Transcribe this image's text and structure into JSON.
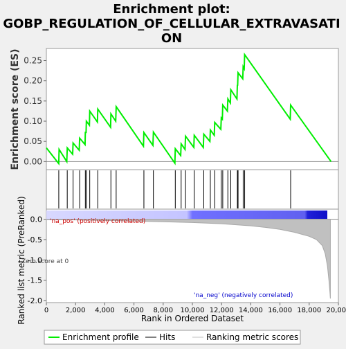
{
  "chart_data": {
    "type": "line",
    "title_line1": "Enrichment plot:",
    "title_line2": "GOBP_REGULATION_OF_CELLULAR_EXTRAVASATI",
    "title_line3": "ON",
    "top_panel": {
      "ylabel": "Enrichment score (ES)",
      "ylim": [
        -0.02,
        0.28
      ],
      "yticks": [
        "0.00",
        "0.05",
        "0.10",
        "0.15",
        "0.20",
        "0.25"
      ],
      "ytick_values": [
        0,
        0.05,
        0.1,
        0.15,
        0.2,
        0.25
      ],
      "series": [
        {
          "name": "Enrichment profile",
          "color": "#00ee00",
          "points": [
            [
              0,
              0.034
            ],
            [
              850,
              -0.005
            ],
            [
              870,
              0.03
            ],
            [
              1400,
              0.0
            ],
            [
              1430,
              0.034
            ],
            [
              1800,
              0.018
            ],
            [
              1830,
              0.046
            ],
            [
              2250,
              0.028
            ],
            [
              2280,
              0.058
            ],
            [
              2650,
              0.042
            ],
            [
              2670,
              0.072
            ],
            [
              2720,
              0.072
            ],
            [
              2740,
              0.1
            ],
            [
              2950,
              0.09
            ],
            [
              2970,
              0.125
            ],
            [
              3500,
              0.098
            ],
            [
              3520,
              0.13
            ],
            [
              4400,
              0.085
            ],
            [
              4420,
              0.118
            ],
            [
              4750,
              0.1
            ],
            [
              4780,
              0.136
            ],
            [
              6650,
              0.038
            ],
            [
              6680,
              0.072
            ],
            [
              7300,
              0.04
            ],
            [
              7330,
              0.073
            ],
            [
              8800,
              -0.004
            ],
            [
              8830,
              0.032
            ],
            [
              9200,
              0.015
            ],
            [
              9230,
              0.044
            ],
            [
              9500,
              0.03
            ],
            [
              9530,
              0.063
            ],
            [
              10100,
              0.035
            ],
            [
              10130,
              0.065
            ],
            [
              10750,
              0.035
            ],
            [
              10780,
              0.068
            ],
            [
              11200,
              0.05
            ],
            [
              11230,
              0.078
            ],
            [
              11500,
              0.065
            ],
            [
              11530,
              0.097
            ],
            [
              11950,
              0.08
            ],
            [
              11980,
              0.108
            ],
            [
              12050,
              0.105
            ],
            [
              12080,
              0.14
            ],
            [
              12400,
              0.125
            ],
            [
              12430,
              0.155
            ],
            [
              12600,
              0.145
            ],
            [
              12630,
              0.178
            ],
            [
              13050,
              0.155
            ],
            [
              13080,
              0.19
            ],
            [
              13100,
              0.188
            ],
            [
              13130,
              0.22
            ],
            [
              13450,
              0.205
            ],
            [
              13480,
              0.235
            ],
            [
              13550,
              0.23
            ],
            [
              13580,
              0.265
            ],
            [
              16700,
              0.105
            ],
            [
              16730,
              0.14
            ],
            [
              19500,
              0.0
            ]
          ]
        }
      ]
    },
    "hits": {
      "name": "Hits",
      "positions": [
        850,
        1430,
        1830,
        2280,
        2670,
        2740,
        2970,
        3520,
        4420,
        4780,
        6680,
        7330,
        8830,
        9230,
        9530,
        10130,
        10780,
        11230,
        11530,
        11980,
        12080,
        12430,
        12630,
        13080,
        13130,
        13480,
        13580,
        16730
      ]
    },
    "bottom_panel": {
      "ylabel": "Ranked list metric (PreRanked)",
      "xlabel": "Rank in Ordered Dataset",
      "ylim": [
        -2.05,
        0.25
      ],
      "yticks": [
        "0.0",
        "-0.5",
        "-1.0",
        "-1.5",
        "-2.0"
      ],
      "ytick_values": [
        0,
        -0.5,
        -1.0,
        -1.5,
        -2.0
      ],
      "xlim": [
        0,
        20000
      ],
      "xticks": [
        "0",
        "2,000",
        "4,000",
        "6,000",
        "8,000",
        "10,000",
        "12,000",
        "14,000",
        "16,000",
        "18,000",
        "20,000"
      ],
      "xtick_values": [
        0,
        2000,
        4000,
        6000,
        8000,
        10000,
        12000,
        14000,
        16000,
        18000,
        20000
      ],
      "series": [
        {
          "name": "Ranking metric scores",
          "color": "#c0c0c0",
          "points": [
            [
              0,
              -0.005
            ],
            [
              2000,
              -0.015
            ],
            [
              4000,
              -0.03
            ],
            [
              6000,
              -0.045
            ],
            [
              8000,
              -0.06
            ],
            [
              10000,
              -0.08
            ],
            [
              12000,
              -0.11
            ],
            [
              14000,
              -0.16
            ],
            [
              15000,
              -0.2
            ],
            [
              16000,
              -0.25
            ],
            [
              17000,
              -0.32
            ],
            [
              18000,
              -0.42
            ],
            [
              18500,
              -0.5
            ],
            [
              18900,
              -0.65
            ],
            [
              19100,
              -0.85
            ],
            [
              19250,
              -1.15
            ],
            [
              19350,
              -1.5
            ],
            [
              19420,
              -1.8
            ],
            [
              19450,
              -1.95
            ]
          ]
        }
      ],
      "pos_label": "'na_pos' (positively correlated)",
      "neg_label": "'na_neg' (negatively correlated)",
      "zero_cross_label": "Zero score at 0",
      "colors": {
        "pos_label": "#cc0000",
        "neg_label": "#0000cc"
      }
    },
    "legend": [
      {
        "label": "Enrichment profile",
        "color": "#00ee00"
      },
      {
        "label": "Hits",
        "color": "#000000"
      },
      {
        "label": "Ranking metric scores",
        "color": "#c0c0c0"
      }
    ],
    "legend_position": "bottom",
    "grid": false
  }
}
